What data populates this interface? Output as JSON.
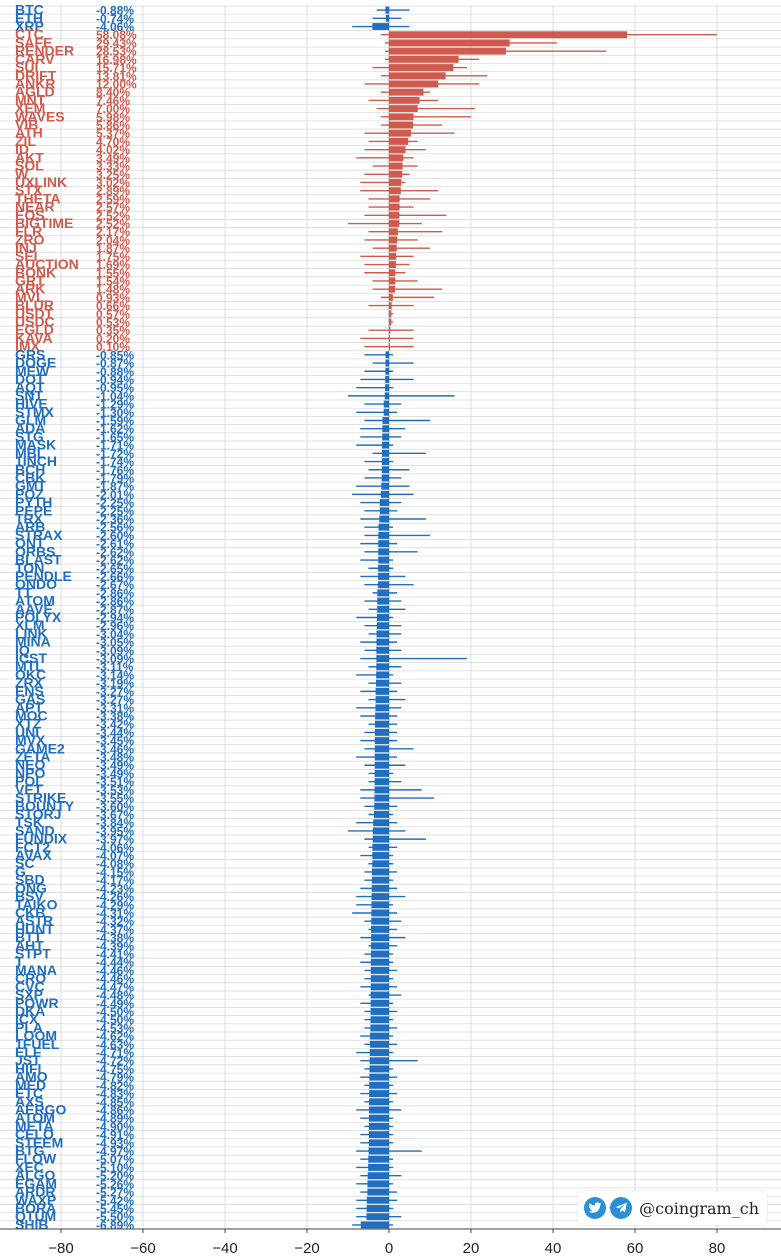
{
  "watermark": {
    "handle": "@coingram_ch"
  },
  "colors": {
    "up": "#d05a4e",
    "down": "#1f6ebf",
    "grid": "#d6d6d6",
    "zero": "#b8b8b8"
  },
  "chart_data": {
    "type": "bar",
    "orientation": "horizontal",
    "xlim": [
      -90,
      90
    ],
    "xticks": [
      -80,
      -60,
      -40,
      -20,
      0,
      20,
      40,
      60,
      80
    ],
    "grid": true,
    "rows": [
      {
        "label": "BTC",
        "change": -0.88,
        "range": [
          -3,
          5
        ]
      },
      {
        "label": "ETH",
        "change": -0.74,
        "range": [
          -4,
          3
        ]
      },
      {
        "label": "XRP",
        "change": -4.06,
        "range": [
          -9,
          5
        ]
      },
      {
        "label": "CTC",
        "change": 58.08,
        "range": [
          -2,
          80
        ]
      },
      {
        "label": "SAFE",
        "change": 29.43,
        "range": [
          -1,
          41
        ]
      },
      {
        "label": "RENDER",
        "change": 28.53,
        "range": [
          -1,
          53
        ]
      },
      {
        "label": "CARV",
        "change": 16.98,
        "range": [
          -1,
          22
        ]
      },
      {
        "label": "SUI",
        "change": 15.71,
        "range": [
          -4,
          19
        ]
      },
      {
        "label": "DRIFT",
        "change": 13.81,
        "range": [
          -2,
          24
        ]
      },
      {
        "label": "ANKR",
        "change": 12.0,
        "range": [
          -6,
          22
        ]
      },
      {
        "label": "AGLD",
        "change": 8.4,
        "range": [
          -2,
          10
        ]
      },
      {
        "label": "MNT",
        "change": 7.46,
        "range": [
          -5,
          12
        ]
      },
      {
        "label": "XEM",
        "change": 7.0,
        "range": [
          -3,
          21
        ]
      },
      {
        "label": "WAVES",
        "change": 5.98,
        "range": [
          -2,
          20
        ]
      },
      {
        "label": "VIB",
        "change": 5.86,
        "range": [
          -2,
          13
        ]
      },
      {
        "label": "ATH",
        "change": 5.37,
        "range": [
          -6,
          16
        ]
      },
      {
        "label": "ZIL",
        "change": 4.7,
        "range": [
          -5,
          7
        ]
      },
      {
        "label": "ID",
        "change": 4.02,
        "range": [
          -6,
          9
        ]
      },
      {
        "label": "AKT",
        "change": 3.49,
        "range": [
          -8,
          6
        ]
      },
      {
        "label": "SOL",
        "change": 3.33,
        "range": [
          -4,
          7
        ]
      },
      {
        "label": "W",
        "change": 3.25,
        "range": [
          -6,
          5
        ]
      },
      {
        "label": "UXLINK",
        "change": 3.02,
        "range": [
          -7,
          4
        ]
      },
      {
        "label": "STX",
        "change": 2.89,
        "range": [
          -7,
          12
        ]
      },
      {
        "label": "THETA",
        "change": 2.59,
        "range": [
          -5,
          10
        ]
      },
      {
        "label": "NEAR",
        "change": 2.57,
        "range": [
          -5,
          6
        ]
      },
      {
        "label": "EOS",
        "change": 2.52,
        "range": [
          -6,
          14
        ]
      },
      {
        "label": "BIGTIME",
        "change": 2.52,
        "range": [
          -10,
          8
        ]
      },
      {
        "label": "FLR",
        "change": 2.17,
        "range": [
          -5,
          13
        ]
      },
      {
        "label": "ZRO",
        "change": 2.04,
        "range": [
          -6,
          7
        ]
      },
      {
        "label": "INJ",
        "change": 1.87,
        "range": [
          -4,
          10
        ]
      },
      {
        "label": "SEI",
        "change": 1.75,
        "range": [
          -7,
          6
        ]
      },
      {
        "label": "AUCTION",
        "change": 1.69,
        "range": [
          -6,
          5
        ]
      },
      {
        "label": "BONK",
        "change": 1.55,
        "range": [
          -6,
          4
        ]
      },
      {
        "label": "GRT",
        "change": 1.54,
        "range": [
          -4,
          7
        ]
      },
      {
        "label": "ARK",
        "change": 1.48,
        "range": [
          -4,
          13
        ]
      },
      {
        "label": "MVL",
        "change": 0.93,
        "range": [
          -2,
          11
        ]
      },
      {
        "label": "BLUR",
        "change": 0.66,
        "range": [
          -5,
          6
        ]
      },
      {
        "label": "USDT",
        "change": 0.57,
        "range": [
          0,
          1
        ]
      },
      {
        "label": "USDC",
        "change": 0.53,
        "range": [
          0,
          1
        ]
      },
      {
        "label": "EGLD",
        "change": 0.35,
        "range": [
          -5,
          6
        ]
      },
      {
        "label": "KAVA",
        "change": 0.2,
        "range": [
          -7,
          6
        ]
      },
      {
        "label": "IMX",
        "change": 0.1,
        "range": [
          -6,
          6
        ]
      },
      {
        "label": "GRS",
        "change": -0.85,
        "range": [
          -6,
          1
        ]
      },
      {
        "label": "DOGE",
        "change": -0.87,
        "range": [
          -4,
          6
        ]
      },
      {
        "label": "MEW",
        "change": -0.88,
        "range": [
          -6,
          1
        ]
      },
      {
        "label": "DOT",
        "change": -0.94,
        "range": [
          -7,
          6
        ]
      },
      {
        "label": "AQT",
        "change": -0.95,
        "range": [
          -8,
          1
        ]
      },
      {
        "label": "SNT",
        "change": -1.04,
        "range": [
          -10,
          16
        ]
      },
      {
        "label": "HIVE",
        "change": -1.29,
        "range": [
          -6,
          3
        ]
      },
      {
        "label": "STMX",
        "change": -1.3,
        "range": [
          -8,
          2
        ]
      },
      {
        "label": "GLM",
        "change": -1.59,
        "range": [
          -6,
          10
        ]
      },
      {
        "label": "ADA",
        "change": -1.62,
        "range": [
          -7,
          4
        ]
      },
      {
        "label": "STG",
        "change": -1.65,
        "range": [
          -7,
          3
        ]
      },
      {
        "label": "MASK",
        "change": -1.71,
        "range": [
          -8,
          1
        ]
      },
      {
        "label": "MBL",
        "change": -1.72,
        "range": [
          -4,
          9
        ]
      },
      {
        "label": "1INCH",
        "change": -1.74,
        "range": [
          -6,
          1
        ]
      },
      {
        "label": "BCH",
        "change": -1.76,
        "range": [
          -5,
          5
        ]
      },
      {
        "label": "CBK",
        "change": -1.79,
        "range": [
          -6,
          3
        ]
      },
      {
        "label": "GMT",
        "change": -1.87,
        "range": [
          -8,
          5
        ]
      },
      {
        "label": "POZ",
        "change": -2.01,
        "range": [
          -9,
          6
        ]
      },
      {
        "label": "PYTH",
        "change": -2.25,
        "range": [
          -7,
          3
        ]
      },
      {
        "label": "PEPE",
        "change": -2.25,
        "range": [
          -6,
          2
        ]
      },
      {
        "label": "TRX",
        "change": -2.36,
        "range": [
          -7,
          9
        ]
      },
      {
        "label": "ARB",
        "change": -2.56,
        "range": [
          -6,
          1
        ]
      },
      {
        "label": "STRAX",
        "change": -2.6,
        "range": [
          -6,
          10
        ]
      },
      {
        "label": "ONT",
        "change": -2.61,
        "range": [
          -7,
          2
        ]
      },
      {
        "label": "ORBS",
        "change": -2.62,
        "range": [
          -6,
          7
        ]
      },
      {
        "label": "BLAST",
        "change": -2.62,
        "range": [
          -7,
          1
        ]
      },
      {
        "label": "TON",
        "change": -2.65,
        "range": [
          -5,
          1
        ]
      },
      {
        "label": "PENDLE",
        "change": -2.66,
        "range": [
          -7,
          4
        ]
      },
      {
        "label": "ONDO",
        "change": -2.67,
        "range": [
          -6,
          6
        ]
      },
      {
        "label": "TT",
        "change": -2.86,
        "range": [
          -4,
          2
        ]
      },
      {
        "label": "ATOM",
        "change": -2.86,
        "range": [
          -6,
          3
        ]
      },
      {
        "label": "AAVE",
        "change": -2.87,
        "range": [
          -5,
          4
        ]
      },
      {
        "label": "POLYX",
        "change": -2.94,
        "range": [
          -8,
          1
        ]
      },
      {
        "label": "XLM",
        "change": -2.96,
        "range": [
          -6,
          3
        ]
      },
      {
        "label": "LINK",
        "change": -3.04,
        "range": [
          -5,
          3
        ]
      },
      {
        "label": "MINA",
        "change": -3.05,
        "range": [
          -7,
          2
        ]
      },
      {
        "label": "IQ",
        "change": -3.09,
        "range": [
          -6,
          3
        ]
      },
      {
        "label": "ICST",
        "change": -3.09,
        "range": [
          -7,
          19
        ]
      },
      {
        "label": "MTL",
        "change": -3.11,
        "range": [
          -5,
          3
        ]
      },
      {
        "label": "OKC",
        "change": -3.14,
        "range": [
          -8,
          1
        ]
      },
      {
        "label": "ZRX",
        "change": -3.19,
        "range": [
          -5,
          3
        ]
      },
      {
        "label": "ENS",
        "change": -3.27,
        "range": [
          -7,
          2
        ]
      },
      {
        "label": "GAS",
        "change": -3.27,
        "range": [
          -5,
          4
        ]
      },
      {
        "label": "APT",
        "change": -3.31,
        "range": [
          -8,
          3
        ]
      },
      {
        "label": "MOC",
        "change": -3.38,
        "range": [
          -7,
          2
        ]
      },
      {
        "label": "XTZ",
        "change": -3.42,
        "range": [
          -5,
          2
        ]
      },
      {
        "label": "UNI",
        "change": -3.44,
        "range": [
          -6,
          2
        ]
      },
      {
        "label": "MVX",
        "change": -3.45,
        "range": [
          -7,
          2
        ]
      },
      {
        "label": "GAME2",
        "change": -3.46,
        "range": [
          -6,
          6
        ]
      },
      {
        "label": "ZETA",
        "change": -3.48,
        "range": [
          -8,
          2
        ]
      },
      {
        "label": "NEO",
        "change": -3.49,
        "range": [
          -6,
          4
        ]
      },
      {
        "label": "NPO",
        "change": -3.49,
        "range": [
          -5,
          1
        ]
      },
      {
        "label": "POL",
        "change": -3.51,
        "range": [
          -5,
          3
        ]
      },
      {
        "label": "VET",
        "change": -3.53,
        "range": [
          -7,
          8
        ]
      },
      {
        "label": "STRIKE",
        "change": -3.55,
        "range": [
          -7,
          11
        ]
      },
      {
        "label": "BOUNTY",
        "change": -3.6,
        "range": [
          -6,
          2
        ]
      },
      {
        "label": "STORJ",
        "change": -3.67,
        "range": [
          -5,
          1
        ]
      },
      {
        "label": "TSK",
        "change": -3.84,
        "range": [
          -8,
          2
        ]
      },
      {
        "label": "SAND",
        "change": -3.95,
        "range": [
          -10,
          4
        ]
      },
      {
        "label": "FUNDIX",
        "change": -3.97,
        "range": [
          -6,
          9
        ]
      },
      {
        "label": "FCT2",
        "change": -4.06,
        "range": [
          -5,
          2
        ]
      },
      {
        "label": "AVAX",
        "change": -4.07,
        "range": [
          -7,
          1
        ]
      },
      {
        "label": "SC",
        "change": -4.08,
        "range": [
          -5,
          1
        ]
      },
      {
        "label": "G",
        "change": -4.15,
        "range": [
          -6,
          2
        ]
      },
      {
        "label": "SBD",
        "change": -4.17,
        "range": [
          -6,
          1
        ]
      },
      {
        "label": "ONG",
        "change": -4.23,
        "range": [
          -7,
          2
        ]
      },
      {
        "label": "BSV",
        "change": -4.26,
        "range": [
          -8,
          4
        ]
      },
      {
        "label": "TAIKO",
        "change": -4.29,
        "range": [
          -8,
          1
        ]
      },
      {
        "label": "CKB",
        "change": -4.31,
        "range": [
          -9,
          2
        ]
      },
      {
        "label": "ASTR",
        "change": -4.32,
        "range": [
          -6,
          3
        ]
      },
      {
        "label": "HUNT",
        "change": -4.37,
        "range": [
          -5,
          2
        ]
      },
      {
        "label": "BTT",
        "change": -4.38,
        "range": [
          -7,
          4
        ]
      },
      {
        "label": "AHT",
        "change": -4.39,
        "range": [
          -5,
          2
        ]
      },
      {
        "label": "STPT",
        "change": -4.41,
        "range": [
          -6,
          1
        ]
      },
      {
        "label": "T",
        "change": -4.44,
        "range": [
          -7,
          1
        ]
      },
      {
        "label": "MANA",
        "change": -4.46,
        "range": [
          -6,
          2
        ]
      },
      {
        "label": "CRO",
        "change": -4.46,
        "range": [
          -6,
          1
        ]
      },
      {
        "label": "CVC",
        "change": -4.47,
        "range": [
          -7,
          2
        ]
      },
      {
        "label": "SXP",
        "change": -4.48,
        "range": [
          -5,
          3
        ]
      },
      {
        "label": "POWR",
        "change": -4.49,
        "range": [
          -7,
          1
        ]
      },
      {
        "label": "DKA",
        "change": -4.5,
        "range": [
          -6,
          2
        ]
      },
      {
        "label": "ICX",
        "change": -4.5,
        "range": [
          -6,
          1
        ]
      },
      {
        "label": "PLA",
        "change": -4.53,
        "range": [
          -6,
          2
        ]
      },
      {
        "label": "LOOM",
        "change": -4.62,
        "range": [
          -7,
          1
        ]
      },
      {
        "label": "1FUEL",
        "change": -4.63,
        "range": [
          -6,
          2
        ]
      },
      {
        "label": "ELF",
        "change": -4.71,
        "range": [
          -8,
          1
        ]
      },
      {
        "label": "JST",
        "change": -4.72,
        "range": [
          -7,
          7
        ]
      },
      {
        "label": "HIFI",
        "change": -4.75,
        "range": [
          -6,
          1
        ]
      },
      {
        "label": "AMO",
        "change": -4.79,
        "range": [
          -7,
          2
        ]
      },
      {
        "label": "MED",
        "change": -4.82,
        "range": [
          -6,
          1
        ]
      },
      {
        "label": "ETC",
        "change": -4.83,
        "range": [
          -7,
          2
        ]
      },
      {
        "label": "AXS",
        "change": -4.85,
        "range": [
          -6,
          1
        ]
      },
      {
        "label": "AERGO",
        "change": -4.86,
        "range": [
          -8,
          3
        ]
      },
      {
        "label": "ATOM",
        "change": -4.89,
        "range": [
          -7,
          1
        ]
      },
      {
        "label": "META",
        "change": -4.9,
        "range": [
          -6,
          1
        ]
      },
      {
        "label": "CELO",
        "change": -4.91,
        "range": [
          -7,
          1
        ]
      },
      {
        "label": "STEEM",
        "change": -4.93,
        "range": [
          -7,
          1
        ]
      },
      {
        "label": "BTG",
        "change": -4.97,
        "range": [
          -8,
          8
        ]
      },
      {
        "label": "FLOW",
        "change": -5.07,
        "range": [
          -7,
          1
        ]
      },
      {
        "label": "XEC",
        "change": -5.1,
        "range": [
          -8,
          1
        ]
      },
      {
        "label": "ALGO",
        "change": -5.2,
        "range": [
          -7,
          3
        ]
      },
      {
        "label": "EGAM",
        "change": -5.26,
        "range": [
          -8,
          1
        ]
      },
      {
        "label": "ARDR",
        "change": -5.27,
        "range": [
          -7,
          2
        ]
      },
      {
        "label": "WAXP",
        "change": -5.42,
        "range": [
          -8,
          2
        ]
      },
      {
        "label": "BORA",
        "change": -5.45,
        "range": [
          -8,
          1
        ]
      },
      {
        "label": "QTUM",
        "change": -5.5,
        "range": [
          -8,
          3
        ]
      },
      {
        "label": "SHIB",
        "change": -6.89,
        "range": [
          -9,
          1
        ]
      }
    ]
  }
}
